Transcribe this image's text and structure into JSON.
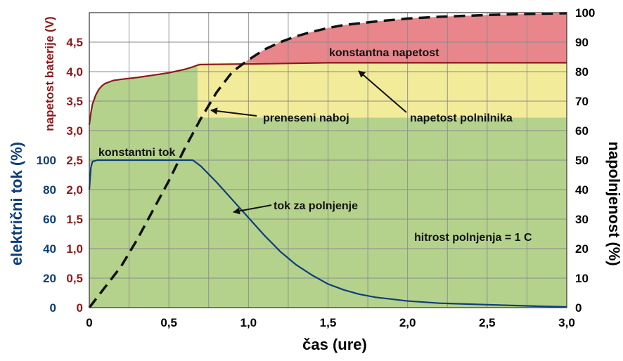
{
  "chart_data": {
    "type": "line",
    "title": "",
    "xlabel": "čas (ure)",
    "ylabel_current": "električni tok (%)",
    "ylabel_voltage": "napetost baterije (V)",
    "ylabel_right": "napolnjenost (%)",
    "xlim": [
      0,
      3.0
    ],
    "x_ticks": [
      "0",
      "0,5",
      "1,0",
      "1,5",
      "2,0",
      "2,5",
      "3,0"
    ],
    "voltage_ylim": [
      0,
      5.0
    ],
    "voltage_ticks": [
      "0",
      "0,5",
      "1,0",
      "1,5",
      "2,0",
      "2,5",
      "3,0",
      "3,5",
      "4,0",
      "4,5"
    ],
    "current_ticks": [
      "0",
      "20",
      "40",
      "60",
      "80",
      "100"
    ],
    "right_ylim": [
      0,
      100
    ],
    "right_ticks": [
      "0",
      "10",
      "20",
      "30",
      "40",
      "50",
      "60",
      "70",
      "80",
      "90",
      "100"
    ],
    "grid": true,
    "series": [
      {
        "key": "voltage",
        "axis": "voltage",
        "color": "#8b1a1a",
        "x": [
          0.0,
          0.01,
          0.02,
          0.04,
          0.06,
          0.08,
          0.1,
          0.15,
          0.2,
          0.3,
          0.4,
          0.5,
          0.55,
          0.6,
          0.65,
          0.68,
          0.7,
          1.0,
          1.5,
          2.0,
          2.5,
          3.0
        ],
        "values": [
          3.1,
          3.3,
          3.45,
          3.6,
          3.7,
          3.76,
          3.8,
          3.85,
          3.87,
          3.9,
          3.94,
          3.98,
          4.01,
          4.04,
          4.08,
          4.11,
          4.12,
          4.13,
          4.15,
          4.15,
          4.15,
          4.15
        ]
      },
      {
        "key": "current",
        "axis": "current",
        "color": "#0e3d7a",
        "x": [
          0.0,
          0.01,
          0.02,
          0.05,
          0.1,
          0.3,
          0.5,
          0.65,
          0.7,
          0.8,
          0.9,
          1.0,
          1.1,
          1.2,
          1.3,
          1.4,
          1.5,
          1.6,
          1.7,
          1.8,
          2.0,
          2.2,
          2.5,
          2.8,
          3.0
        ],
        "values": [
          80,
          95,
          99,
          100,
          100,
          100,
          100,
          100,
          96,
          85,
          73,
          61,
          49,
          38,
          29,
          22,
          16,
          12,
          9,
          7,
          4.5,
          3,
          2,
          1,
          0.5
        ]
      },
      {
        "key": "charge",
        "axis": "right",
        "color": "#111111",
        "dash": true,
        "x": [
          0.0,
          0.1,
          0.2,
          0.3,
          0.4,
          0.5,
          0.6,
          0.7,
          0.8,
          0.9,
          1.0,
          1.1,
          1.2,
          1.3,
          1.4,
          1.5,
          1.6,
          1.8,
          2.0,
          2.2,
          2.5,
          2.8,
          3.0
        ],
        "values": [
          0,
          7,
          14,
          23,
          33,
          43,
          54,
          64,
          73,
          80,
          84,
          87.5,
          90,
          92,
          93.5,
          94.8,
          95.8,
          97,
          98,
          98.6,
          99.2,
          99.6,
          99.8
        ]
      }
    ],
    "annotations": [
      {
        "key": "const_voltage",
        "text": "konstantna napetost"
      },
      {
        "key": "transferred",
        "text": "preneseni naboj"
      },
      {
        "key": "charger_voltage",
        "text": "napetost polnilnika"
      },
      {
        "key": "const_current",
        "text": "konstantni tok"
      },
      {
        "key": "charge_current",
        "text": "tok za polnjenje"
      },
      {
        "key": "rate",
        "text": "hitrost polnjenja = 1 C"
      }
    ],
    "region_colors": {
      "green": "#b5d28c",
      "yellow": "#f2eb9a",
      "red": "#e8868c"
    },
    "axis_colors": {
      "voltage": "#8b1a1a",
      "current": "#0e3d7a",
      "right": "#000000"
    }
  }
}
